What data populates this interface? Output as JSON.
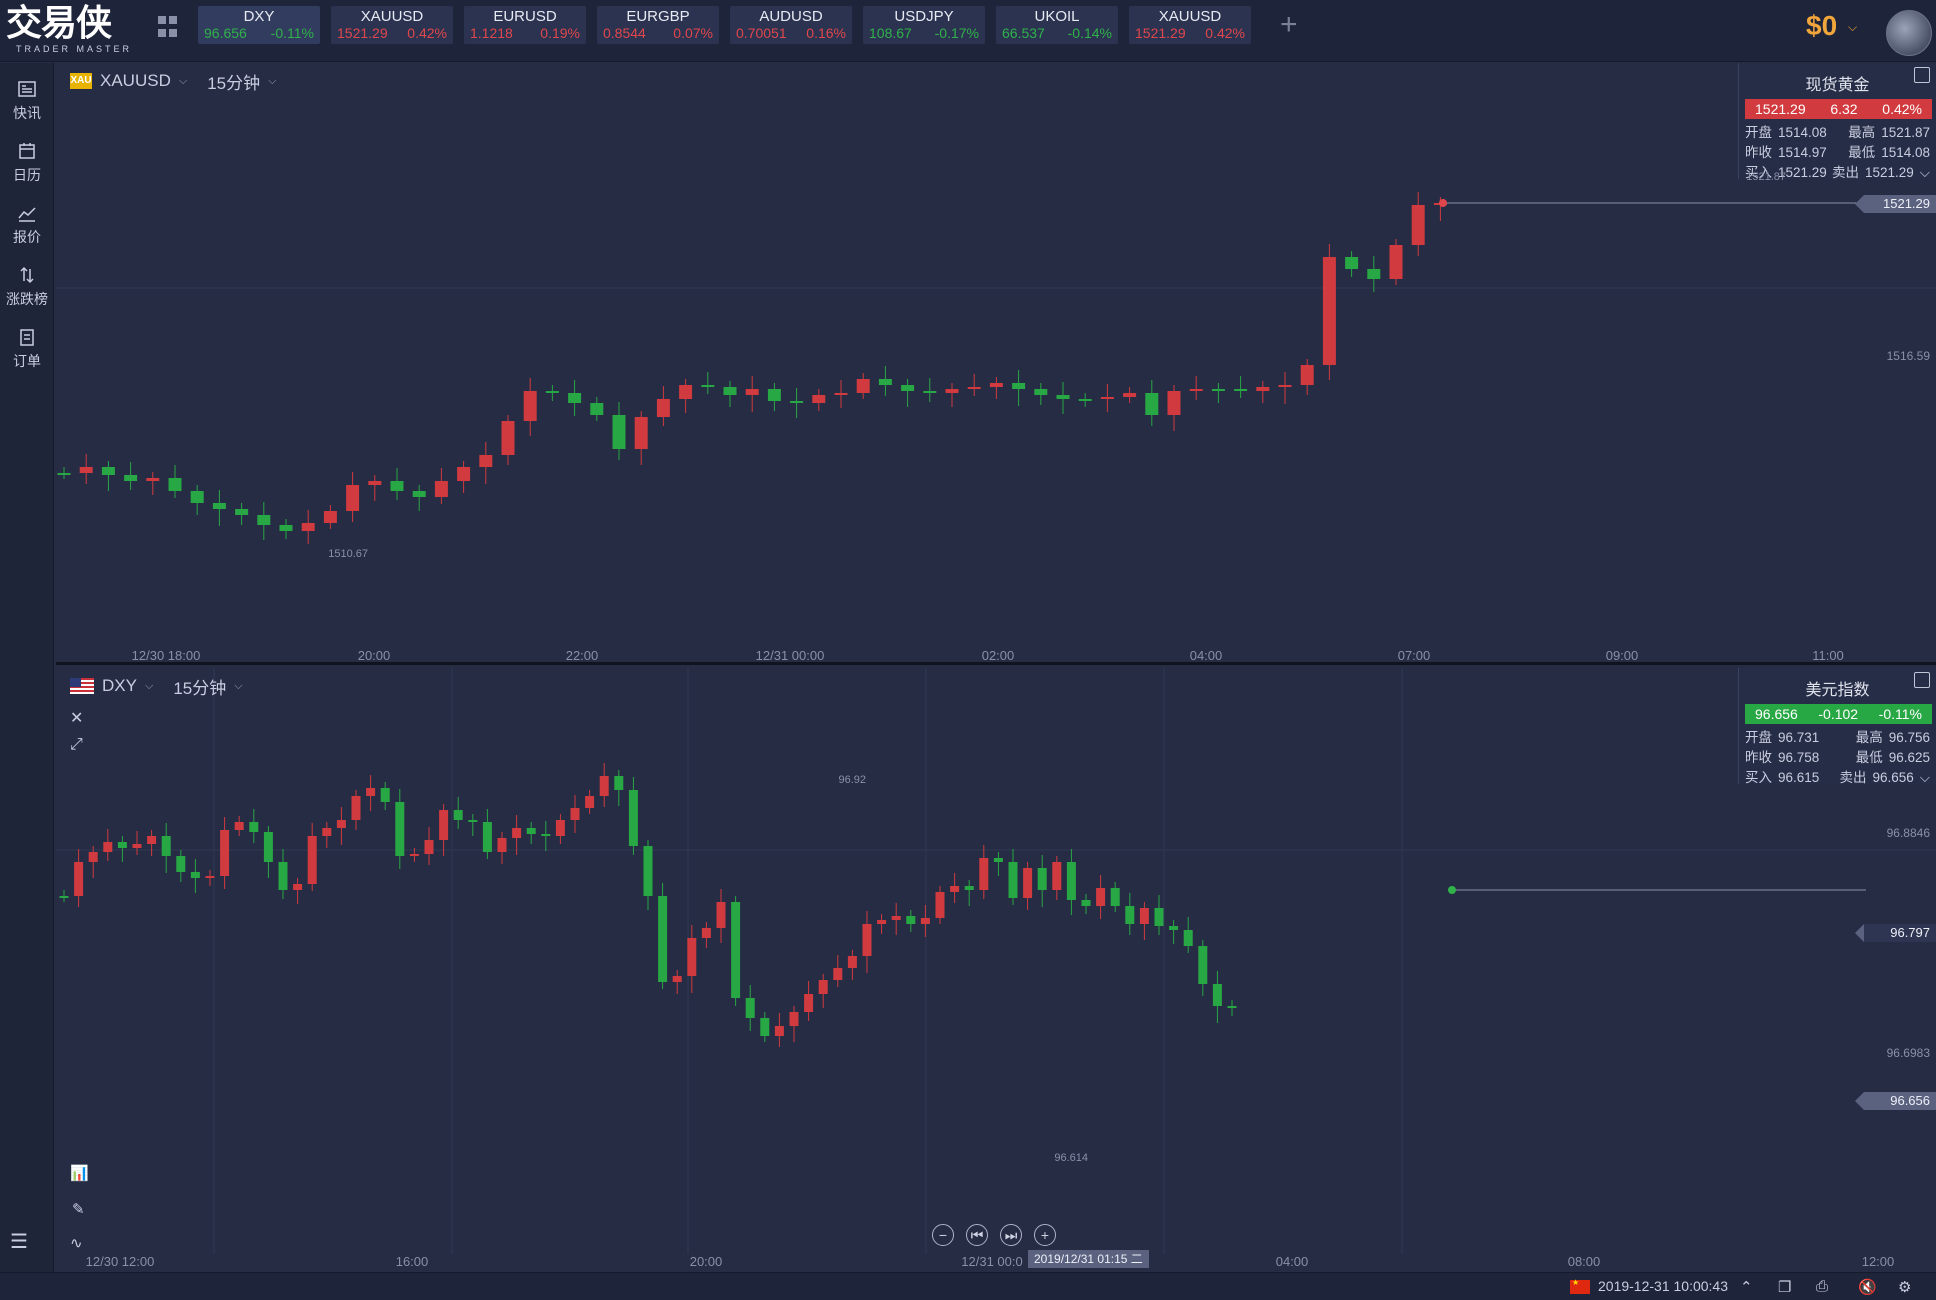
{
  "logo": {
    "main": "交易侠",
    "sub": "TRADER MASTER"
  },
  "tickers": [
    {
      "symbol": "DXY",
      "price": "96.656",
      "change": "-0.11%",
      "dir": "green",
      "active": true
    },
    {
      "symbol": "XAUUSD",
      "price": "1521.29",
      "change": "0.42%",
      "dir": "red"
    },
    {
      "symbol": "EURUSD",
      "price": "1.1218",
      "change": "0.19%",
      "dir": "red"
    },
    {
      "symbol": "EURGBP",
      "price": "0.8544",
      "change": "0.07%",
      "dir": "red"
    },
    {
      "symbol": "AUDUSD",
      "price": "0.70051",
      "change": "0.16%",
      "dir": "red"
    },
    {
      "symbol": "USDJPY",
      "price": "108.67",
      "change": "-0.17%",
      "dir": "green"
    },
    {
      "symbol": "UKOIL",
      "price": "66.537",
      "change": "-0.14%",
      "dir": "green"
    },
    {
      "symbol": "XAUUSD",
      "price": "1521.29",
      "change": "0.42%",
      "dir": "red"
    }
  ],
  "add_tab": "+",
  "balance": "$0",
  "sidebar": {
    "items": [
      {
        "label": "快讯",
        "icon": "newsflash-icon"
      },
      {
        "label": "日历",
        "icon": "calendar-icon"
      },
      {
        "label": "报价",
        "icon": "quote-chart-icon"
      },
      {
        "label": "涨跌榜",
        "icon": "updown-ranking-icon"
      },
      {
        "label": "订单",
        "icon": "order-icon"
      }
    ]
  },
  "top_chart": {
    "symbol": "XAUUSD",
    "badge": "XAU",
    "interval": "15分钟",
    "info": {
      "title": "现货黄金",
      "price": "1521.29",
      "change": "6.32",
      "change_pct": "0.42%",
      "open_label": "开盘",
      "open": "1514.08",
      "high_label": "最高",
      "high": "1521.87",
      "prev_label": "昨收",
      "prev": "1514.97",
      "low_label": "最低",
      "low": "1514.08",
      "bid_label": "买入",
      "bid": "1521.29",
      "ask_label": "卖出",
      "ask": "1521.29"
    },
    "price_tag": "1521.29",
    "axis_labels": [
      "1516.59"
    ],
    "high_label": "1521.87",
    "low_label": "1510.67",
    "time_labels": [
      "12/30 18:00",
      "20:00",
      "22:00",
      "12/31 00:00",
      "02:00",
      "04:00",
      "07:00",
      "09:00",
      "11:00"
    ]
  },
  "bottom_chart": {
    "symbol": "DXY",
    "interval": "15分钟",
    "info": {
      "title": "美元指数",
      "price": "96.656",
      "change": "-0.102",
      "change_pct": "-0.11%",
      "open_label": "开盘",
      "open": "96.731",
      "high_label": "最高",
      "high": "96.756",
      "prev_label": "昨收",
      "prev": "96.758",
      "low_label": "最低",
      "low": "96.625",
      "bid_label": "买入",
      "bid": "96.615",
      "ask_label": "卖出",
      "ask": "96.656"
    },
    "price_tag": "96.656",
    "axis_labels": [
      "96.8846",
      "96.797",
      "96.6983"
    ],
    "high_label": "96.92",
    "low_label": "96.614",
    "time_labels": [
      "12/30 12:00",
      "16:00",
      "20:00",
      "12/31 00:0",
      "04:00",
      "08:00",
      "12:00"
    ],
    "crosshair_date": "2019/12/31 01:15 二"
  },
  "status": {
    "datetime": "2019-12-31 10:00:43"
  },
  "colors": {
    "up": "#d13a3f",
    "down": "#28a745",
    "accent": "#f0a63a",
    "background": "#252c44"
  }
}
